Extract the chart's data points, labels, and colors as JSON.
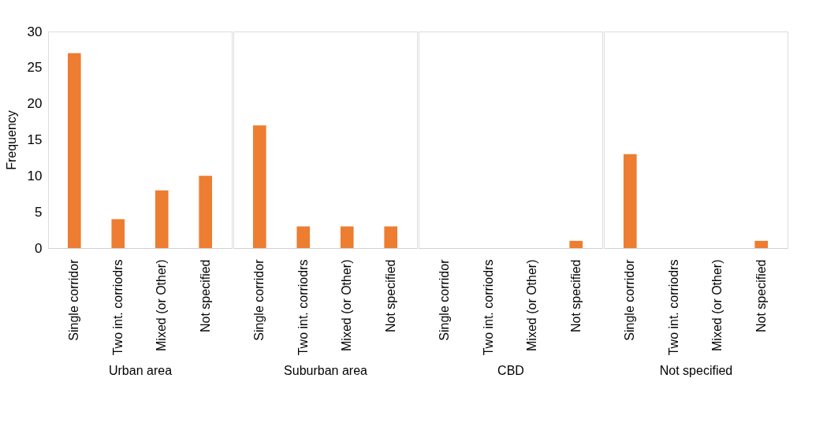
{
  "chart_data": [
    {
      "type": "bar",
      "xlabel": "Urban area",
      "ylabel": "Frequency",
      "categories": [
        "Single corridor",
        "Two int. corriodrs",
        "Mixed (or Other)",
        "Not specified"
      ],
      "values": [
        27,
        4,
        8,
        10
      ],
      "color": "#ed7d31",
      "ylim": [
        0,
        30
      ],
      "yticks": [
        0,
        5,
        10,
        15,
        20,
        25,
        30
      ],
      "grid": false
    },
    {
      "type": "bar",
      "xlabel": "Suburban area",
      "categories": [
        "Single corridor",
        "Two int. corriodrs",
        "Mixed (or Other)",
        "Not specified"
      ],
      "values": [
        17,
        3,
        3,
        3
      ],
      "color": "#ed7d31",
      "ylim": [
        0,
        30
      ],
      "tick_labels": "x",
      "grid": false
    },
    {
      "type": "bar",
      "xlabel": "CBD",
      "categories": [
        "Single corridor",
        "Two int. corriodrs",
        "Mixed (or Other)",
        "Not specified"
      ],
      "values": [
        0,
        0,
        0,
        1
      ],
      "color": "#ed7d31",
      "ylim": [
        0,
        30
      ],
      "tick_labels": "x",
      "grid": false
    },
    {
      "type": "bar",
      "xlabel": "Not specified",
      "categories": [
        "Single corridor",
        "Two int. corriodrs",
        "Mixed (or Other)",
        "Not specified"
      ],
      "values": [
        13,
        0,
        0,
        1
      ],
      "color": "#ed7d31",
      "ylim": [
        0,
        30
      ],
      "tick_labels": "x",
      "grid": false
    }
  ]
}
